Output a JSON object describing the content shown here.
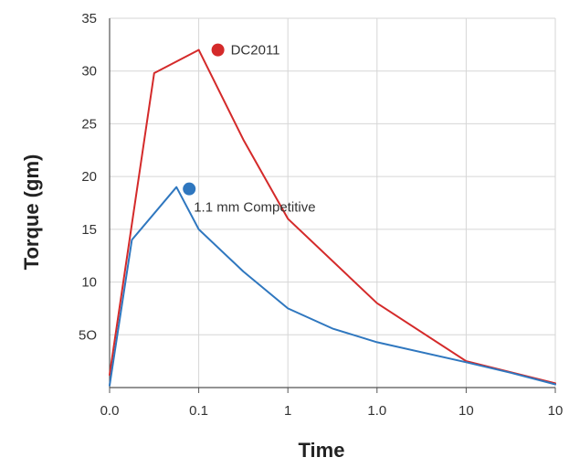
{
  "chart_data": {
    "type": "line",
    "title": "",
    "xlabel": "Time",
    "ylabel": "Torque (gm)",
    "x_tick_labels": [
      "0.0",
      "0.1",
      "1",
      "1.0",
      "10",
      "10"
    ],
    "y_tick_labels": [
      "5O",
      "10",
      "15",
      "20",
      "25",
      "30",
      "35"
    ],
    "ylim": [
      0,
      35
    ],
    "grid": true,
    "legend": "none",
    "series": [
      {
        "name": "DC2011",
        "color": "#d42a2a",
        "x": [
          0.0,
          0.5,
          1.0,
          1.5,
          2.0,
          3.0,
          4.0,
          5.0
        ],
        "y": [
          1.2,
          29.8,
          32.0,
          23.5,
          16.0,
          8.0,
          2.5,
          0.4
        ]
      },
      {
        "name": "1.1 mm Competitive",
        "color": "#2f77bf",
        "x": [
          0.0,
          0.25,
          0.75,
          1.0,
          1.5,
          2.0,
          2.5,
          3.0,
          4.0,
          4.5,
          5.0
        ],
        "y": [
          0.2,
          14.0,
          19.0,
          15.0,
          11.0,
          7.5,
          5.6,
          4.3,
          2.4,
          1.4,
          0.3
        ]
      }
    ],
    "annotations": [
      {
        "text": "DC2011",
        "series": 0,
        "color": "#d42a2a"
      },
      {
        "text": "1.1 mm Competitive",
        "series": 1,
        "color": "#2f77bf"
      }
    ]
  }
}
